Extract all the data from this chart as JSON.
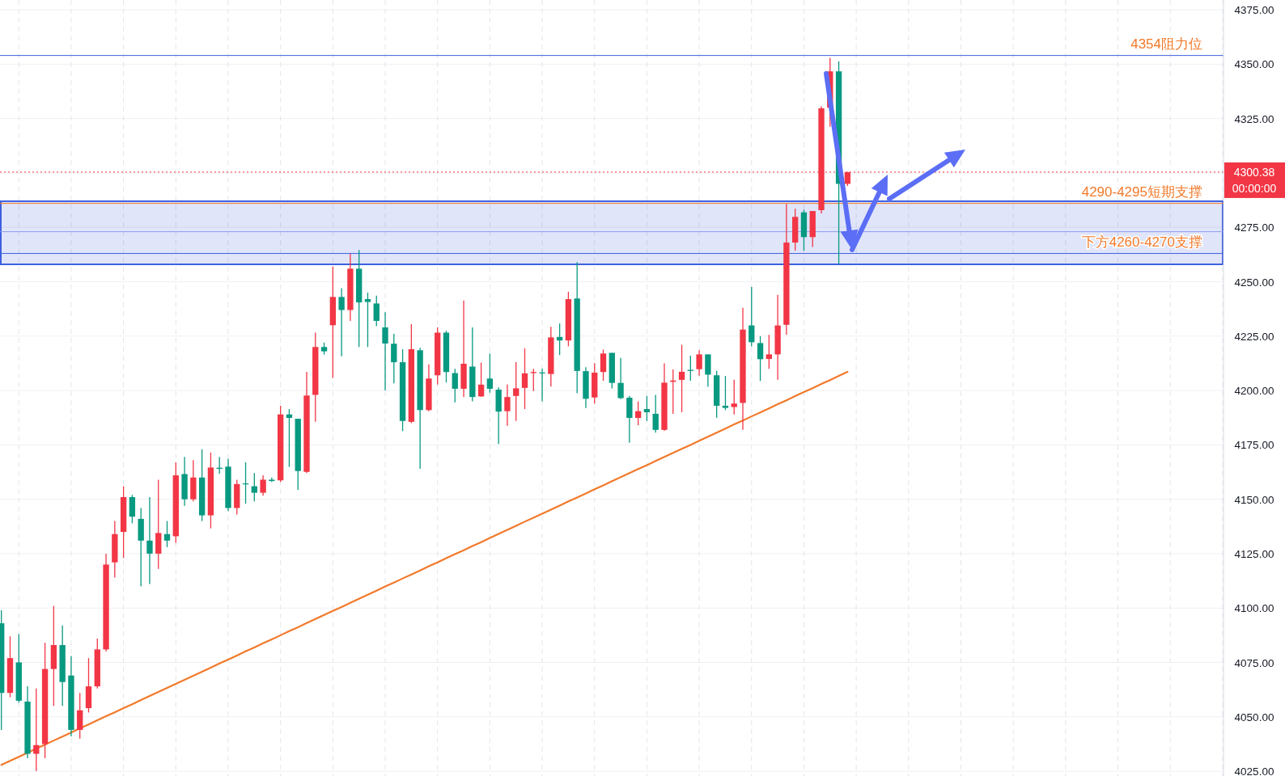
{
  "chart_data": {
    "type": "candlestick",
    "categories": [
      null,
      null,
      null,
      null,
      null,
      null,
      null,
      null,
      null,
      null,
      null,
      null,
      null,
      null,
      null,
      null,
      null,
      null,
      null,
      null,
      null,
      null,
      null,
      null,
      null,
      null,
      null,
      null,
      null,
      null,
      null,
      null,
      null,
      null,
      null,
      null,
      null,
      null,
      null,
      null,
      null,
      null,
      null,
      null,
      null,
      null,
      null,
      null,
      null,
      null,
      null,
      null,
      null,
      null,
      null,
      null,
      null,
      null,
      null,
      null,
      null,
      null,
      null,
      null,
      null,
      null,
      null,
      null,
      null,
      null,
      null,
      null,
      null,
      null,
      null,
      null,
      null,
      null,
      null,
      null,
      null,
      null,
      null,
      null,
      null,
      null,
      null,
      null,
      null,
      null,
      null,
      null,
      null,
      null,
      null,
      null,
      null,
      null
    ],
    "ohlc": [
      [
        4093,
        4099,
        4044,
        4061
      ],
      [
        4061,
        4087,
        4059,
        4077
      ],
      [
        4075,
        4088,
        4056.5,
        4057.4
      ],
      [
        4057,
        4064,
        4031,
        4033
      ],
      [
        4033,
        4063,
        4025,
        4037
      ],
      [
        4037.5,
        4084,
        4031,
        4072
      ],
      [
        4072,
        4101,
        4055,
        4083
      ],
      [
        4083,
        4092,
        4055,
        4066
      ],
      [
        4069,
        4078,
        4041,
        4044
      ],
      [
        4044,
        4061,
        4040,
        4053
      ],
      [
        4054,
        4077,
        4052,
        4064
      ],
      [
        4064,
        4086,
        4063,
        4081
      ],
      [
        4081,
        4125,
        4080,
        4120
      ],
      [
        4121,
        4140,
        4114,
        4134
      ],
      [
        4135,
        4156,
        4123,
        4151
      ],
      [
        4151,
        4152,
        4139,
        4142
      ],
      [
        4141,
        4146,
        4110,
        4131
      ],
      [
        4131,
        4151,
        4111,
        4125
      ],
      [
        4125,
        4159,
        4118,
        4134.5
      ],
      [
        4134,
        4140,
        4128,
        4131
      ],
      [
        4133,
        4167,
        4130,
        4161
      ],
      [
        4161.6,
        4169.5,
        4147,
        4150
      ],
      [
        4150,
        4168,
        4149,
        4160
      ],
      [
        4160,
        4173,
        4140,
        4142.6
      ],
      [
        4142.6,
        4171.5,
        4136.6,
        4164.6
      ],
      [
        4164.5,
        4169.5,
        4161.8,
        4164
      ],
      [
        4165,
        4168.6,
        4144.6,
        4146
      ],
      [
        4146,
        4159,
        4143,
        4157
      ],
      [
        4157.3,
        4167,
        4148,
        4157
      ],
      [
        4156,
        4162,
        4149,
        4153
      ],
      [
        4153,
        4161,
        4151.6,
        4159
      ],
      [
        4159,
        4160,
        4158,
        4158.4
      ],
      [
        4158.7,
        4193,
        4158,
        4189
      ],
      [
        4189,
        4191.5,
        4164.9,
        4187.4
      ],
      [
        4187,
        4187,
        4154.3,
        4163
      ],
      [
        4162.6,
        4208.6,
        4162,
        4197.7
      ],
      [
        4198,
        4226.6,
        4185.6,
        4220
      ],
      [
        4220,
        4222,
        4216.5,
        4218
      ],
      [
        4230,
        4257,
        4205.8,
        4243
      ],
      [
        4243,
        4247,
        4215.7,
        4237
      ],
      [
        4237,
        4262.8,
        4232,
        4256
      ],
      [
        4256,
        4264.6,
        4220,
        4240.5
      ],
      [
        4242,
        4245,
        4220,
        4240.7
      ],
      [
        4240,
        4243.6,
        4229.6,
        4232
      ],
      [
        4229,
        4236,
        4200,
        4221.6
      ],
      [
        4221.5,
        4226,
        4203.3,
        4213
      ],
      [
        4213,
        4219,
        4181.3,
        4186
      ],
      [
        4185.6,
        4230.5,
        4185,
        4219
      ],
      [
        4218.5,
        4219.6,
        4164,
        4191
      ],
      [
        4191,
        4212,
        4190.5,
        4205.5
      ],
      [
        4207,
        4229,
        4202.7,
        4226.6
      ],
      [
        4226.6,
        4227.5,
        4203.7,
        4208.5
      ],
      [
        4208,
        4210,
        4194.6,
        4200.8
      ],
      [
        4200.8,
        4241.4,
        4197,
        4212.3
      ],
      [
        4211,
        4229,
        4195,
        4197
      ],
      [
        4197.3,
        4212.8,
        4197,
        4202.7
      ],
      [
        4205.5,
        4217,
        4199,
        4200.8
      ],
      [
        4200.4,
        4201.4,
        4175.4,
        4190.3
      ],
      [
        4190.5,
        4202.7,
        4183.8,
        4197
      ],
      [
        4197.5,
        4213,
        4186,
        4201
      ],
      [
        4201.2,
        4219.4,
        4191.5,
        4207.9
      ],
      [
        4208,
        4210,
        4199.8,
        4208.5
      ],
      [
        4208.3,
        4210,
        4195,
        4207.9
      ],
      [
        4207.6,
        4229.3,
        4201.8,
        4224.4
      ],
      [
        4224.6,
        4230.8,
        4216.3,
        4223
      ],
      [
        4223,
        4245.4,
        4220.3,
        4242
      ],
      [
        4242.3,
        4259,
        4198.7,
        4209
      ],
      [
        4208.9,
        4210.7,
        4192,
        4196.2
      ],
      [
        4196.8,
        4212.6,
        4194,
        4208.2
      ],
      [
        4208.5,
        4218.8,
        4204.5,
        4217
      ],
      [
        4217.3,
        4217.3,
        4201,
        4203.5
      ],
      [
        4203.5,
        4215,
        4196,
        4196.5
      ],
      [
        4196.7,
        4197.5,
        4176,
        4187.4
      ],
      [
        4187.4,
        4195,
        4184,
        4190.5
      ],
      [
        4191.5,
        4197.5,
        4186,
        4190
      ],
      [
        4189.3,
        4198,
        4180.6,
        4181.9
      ],
      [
        4181.9,
        4212.5,
        4181.5,
        4203.6
      ],
      [
        4204,
        4209.7,
        4189.3,
        4204.6
      ],
      [
        4204.9,
        4221,
        4190,
        4208.6
      ],
      [
        4209.5,
        4216,
        4204.5,
        4209
      ],
      [
        4209.8,
        4218.5,
        4206.8,
        4216.6
      ],
      [
        4216.6,
        4216.6,
        4201.7,
        4207.3
      ],
      [
        4207,
        4209,
        4187.5,
        4193
      ],
      [
        4193,
        4206.7,
        4191,
        4192
      ],
      [
        4192.4,
        4205,
        4189,
        4194
      ],
      [
        4194.3,
        4238,
        4181.9,
        4228
      ],
      [
        4229.9,
        4247.6,
        4220.3,
        4222.2
      ],
      [
        4221.8,
        4225,
        4204.4,
        4214.4
      ],
      [
        4214.5,
        4225.6,
        4210,
        4216.6
      ],
      [
        4216.6,
        4244,
        4205,
        4229.9
      ],
      [
        4230.2,
        4285.8,
        4225.6,
        4268
      ],
      [
        4268,
        4283.5,
        4264.3,
        4279.8
      ],
      [
        4281.9,
        4283.1,
        4264.3,
        4270.5
      ],
      [
        4270.5,
        4282.5,
        4266,
        4282.5
      ],
      [
        4282.9,
        4330.6,
        4281.4,
        4329.7
      ],
      [
        4330,
        4352.9,
        4321.3,
        4346.7
      ],
      [
        4346.7,
        4351.3,
        4258.3,
        4295
      ],
      [
        4295,
        4300.5,
        4294,
        4300.38
      ]
    ],
    "colors": [
      "#089981",
      "#f23645",
      "#089981",
      "#089981",
      "#f23645",
      "#f23645",
      "#f23645",
      "#089981",
      "#089981",
      "#f23645",
      "#f23645",
      "#f23645",
      "#f23645",
      "#f23645",
      "#f23645",
      "#089981",
      "#089981",
      "#089981",
      "#f23645",
      "#089981",
      "#f23645",
      "#089981",
      "#f23645",
      "#089981",
      "#f23645",
      "#089981",
      "#089981",
      "#f23645",
      "#089981",
      "#089981",
      "#f23645",
      "#089981",
      "#f23645",
      "#089981",
      "#089981",
      "#f23645",
      "#f23645",
      "#089981",
      "#f23645",
      "#089981",
      "#f23645",
      "#089981",
      "#089981",
      "#089981",
      "#089981",
      "#089981",
      "#089981",
      "#f23645",
      "#089981",
      "#f23645",
      "#f23645",
      "#089981",
      "#089981",
      "#f23645",
      "#089981",
      "#f23645",
      "#089981",
      "#089981",
      "#f23645",
      "#f23645",
      "#f23645",
      "#f23645",
      "#089981",
      "#f23645",
      "#089981",
      "#f23645",
      "#089981",
      "#089981",
      "#f23645",
      "#f23645",
      "#089981",
      "#089981",
      "#089981",
      "#f23645",
      "#089981",
      "#089981",
      "#f23645",
      "#f23645",
      "#f23645",
      "#089981",
      "#f23645",
      "#089981",
      "#089981",
      "#089981",
      "#f23645",
      "#f23645",
      "#089981",
      "#089981",
      "#f23645",
      "#f23645",
      "#f23645",
      "#f23645",
      "#089981",
      "#f23645",
      "#f23645",
      "#f23645",
      "#089981",
      "#f23645"
    ],
    "series": [
      {
        "type": "line",
        "color": "#f2792a",
        "values": [
          4027.9,
          4029.8,
          4031.6,
          4033.5,
          4035.4,
          4037.2,
          4039.1,
          4040.9,
          4042.8,
          4044.7,
          4046.5,
          4048.4,
          4050.3,
          4052.1,
          4054.0,
          4055.8,
          4057.7,
          4059.6,
          4061.4,
          4063.3,
          4065.2,
          4067.0,
          4068.9,
          4070.7,
          4072.6,
          4074.5,
          4076.3,
          4078.2,
          4080.1,
          4081.9,
          4083.8,
          4085.6,
          4087.5,
          4089.4,
          4091.2,
          4093.1,
          4095.0,
          4096.8,
          4098.7,
          4100.5,
          4102.4,
          4104.3,
          4106.1,
          4108.0,
          4109.9,
          4111.7,
          4113.6,
          4115.4,
          4117.3,
          4119.2,
          4121.0,
          4122.9,
          4124.8,
          4126.6,
          4128.5,
          4130.3,
          4132.2,
          4134.1,
          4135.9,
          4137.8,
          4139.7,
          4141.5,
          4143.4,
          4145.2,
          4147.1,
          4149.0,
          4150.8,
          4152.7,
          4154.6,
          4156.4,
          4158.3,
          4160.2,
          4162.0,
          4163.9,
          4165.7,
          4167.6,
          4169.5,
          4171.3,
          4173.2,
          4175.0,
          4176.9,
          4178.8,
          4180.6,
          4182.5,
          4184.4,
          4186.2,
          4188.1,
          4189.9,
          4191.8,
          4193.7,
          4195.5,
          4197.4,
          4199.3,
          4201.1,
          4203.0,
          4204.8,
          4206.7,
          4208.6
        ]
      }
    ],
    "bands": [
      {
        "axis": "y",
        "from": 4258,
        "to": 4287,
        "color": "#3d5fe0"
      }
    ],
    "ref_lines": [
      {
        "axis": "y",
        "value": 4300.38,
        "label": "4300.38",
        "color": "#f23645",
        "line_style": "dotted"
      },
      {
        "axis": "y",
        "value": 4273,
        "color": "#8a9cf0",
        "line_style": "solid"
      },
      {
        "axis": "y",
        "value": 4354,
        "label": "4354阻力位",
        "color": "#3d5fe0",
        "line_style": "solid"
      },
      {
        "axis": "y",
        "value": 4286,
        "label": "4290-4295短期支撑",
        "color": "#f2792a",
        "line_style": "solid"
      },
      {
        "axis": "y",
        "value": 4263,
        "label": "下方4260-4270支撑",
        "color": "#3d5fe0",
        "line_style": "solid"
      }
    ],
    "annotations": [
      "00:00:00"
    ],
    "ylim": [
      4022.8,
      4379.5
    ],
    "yticks": [
      {
        "value": 4025,
        "label": "4025.00"
      },
      {
        "value": 4050,
        "label": "4050.00"
      },
      {
        "value": 4075,
        "label": "4075.00"
      },
      {
        "value": 4100,
        "label": "4100.00"
      },
      {
        "value": 4125,
        "label": "4125.00"
      },
      {
        "value": 4150,
        "label": "4150.00"
      },
      {
        "value": 4175,
        "label": "4175.00"
      },
      {
        "value": 4200,
        "label": "4200.00"
      },
      {
        "value": 4225,
        "label": "4225.00"
      },
      {
        "value": 4250,
        "label": "4250.00"
      },
      {
        "value": 4275,
        "label": "4275.00"
      },
      {
        "value": 4300,
        "label": null
      },
      {
        "value": 4325,
        "label": "4325.00"
      },
      {
        "value": 4350,
        "label": "4350.00"
      },
      {
        "value": 4375,
        "label": "4375.00"
      }
    ],
    "tick_labels": "y",
    "grid": true
  }
}
